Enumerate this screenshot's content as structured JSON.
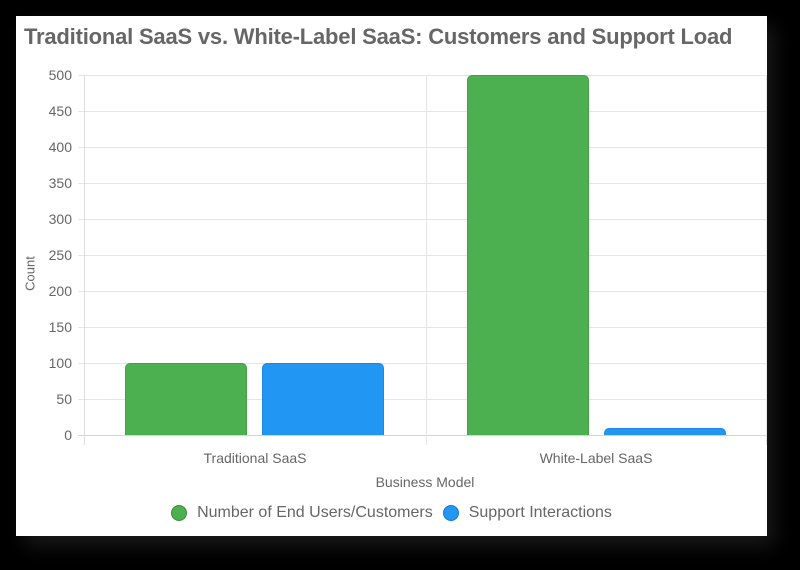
{
  "chart_data": {
    "type": "bar",
    "title": "Traditional SaaS vs. White-Label SaaS: Customers and Support Load",
    "xlabel": "Business Model",
    "ylabel": "Count",
    "categories": [
      "Traditional SaaS",
      "White-Label SaaS"
    ],
    "series": [
      {
        "name": "Number of End Users/Customers",
        "color": "#4caf50",
        "values": [
          100,
          500
        ]
      },
      {
        "name": "Support Interactions",
        "color": "#2196f3",
        "values": [
          100,
          10
        ]
      }
    ],
    "ylim": [
      0,
      500
    ],
    "yticks": [
      "500",
      "450",
      "400",
      "350",
      "300",
      "250",
      "200",
      "150",
      "100",
      "50",
      "0"
    ],
    "grid": true,
    "legend_position": "bottom"
  },
  "legend": {
    "items": [
      {
        "label": "Number of End Users/Customers",
        "color": "#4caf50"
      },
      {
        "label": "Support Interactions",
        "color": "#2196f3"
      }
    ]
  }
}
